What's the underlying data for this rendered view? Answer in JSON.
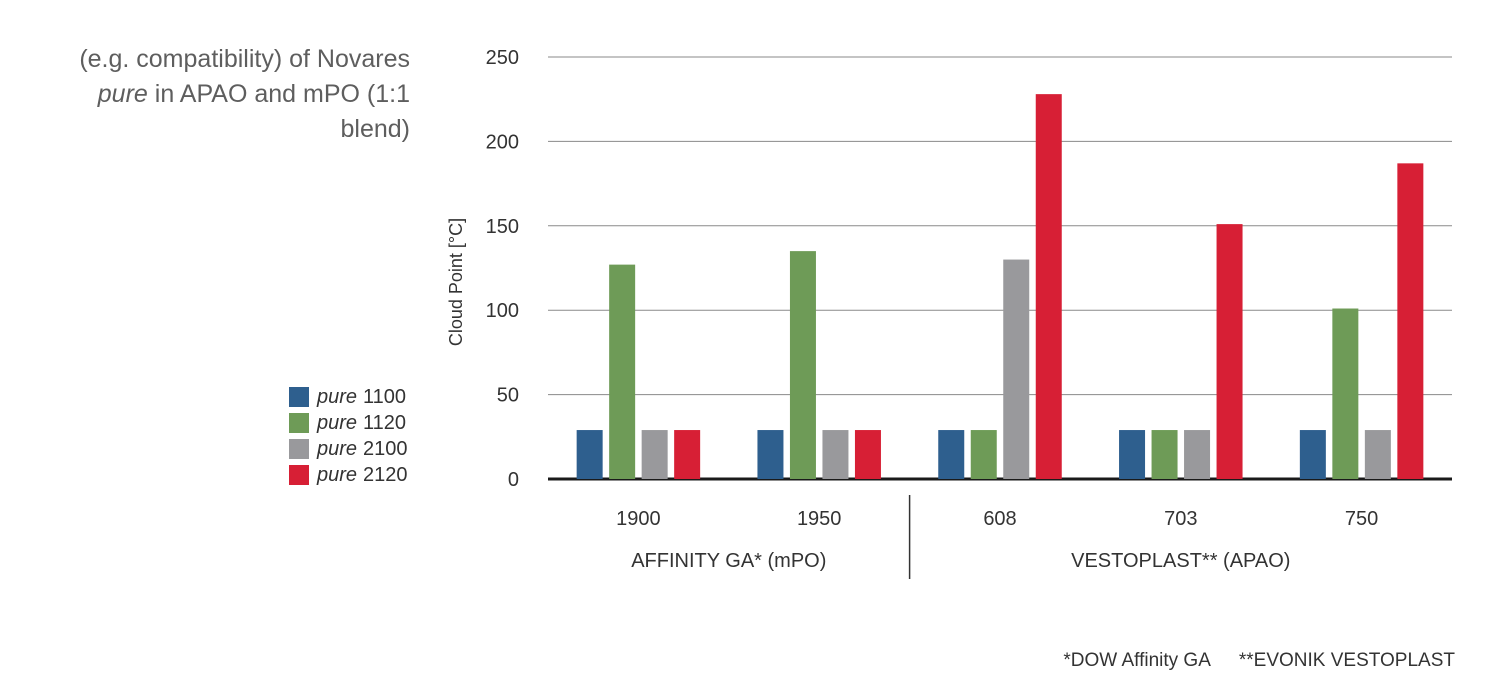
{
  "title": {
    "line1": "(e.g. compatibility) of Novares",
    "line2_italic": "pure",
    "line2_rest": " in APAO and mPO (1:1",
    "line3": "blend)"
  },
  "legend": [
    {
      "name": "pure",
      "code": "1100",
      "color": "#2e5f8e"
    },
    {
      "name": "pure",
      "code": "1120",
      "color": "#6e9b57"
    },
    {
      "name": "pure",
      "code": "2100",
      "color": "#99999c"
    },
    {
      "name": "pure",
      "code": "2120",
      "color": "#d71f35"
    }
  ],
  "footnotes": [
    "*DOW Affinity GA",
    "**EVONIK VESTOPLAST"
  ],
  "chart_data": {
    "type": "bar",
    "ylabel": "Cloud Point [°C]",
    "ylim": [
      0,
      250
    ],
    "yticks": [
      0,
      50,
      100,
      150,
      200,
      250
    ],
    "grid": true,
    "categories": [
      "1900",
      "1950",
      "608",
      "703",
      "750"
    ],
    "groups": [
      {
        "label": "AFFINITY GA* (mPO)",
        "categories": [
          "1900",
          "1950"
        ]
      },
      {
        "label": "VESTOPLAST** (APAO)",
        "categories": [
          "608",
          "703",
          "750"
        ]
      }
    ],
    "series": [
      {
        "name": "pure 1100",
        "color": "#2e5f8e",
        "values": [
          29,
          29,
          29,
          29,
          29
        ]
      },
      {
        "name": "pure 1120",
        "color": "#6e9b57",
        "values": [
          127,
          135,
          29,
          29,
          101
        ]
      },
      {
        "name": "pure 2100",
        "color": "#99999c",
        "values": [
          29,
          29,
          130,
          29,
          29
        ]
      },
      {
        "name": "pure 2120",
        "color": "#d71f35",
        "values": [
          29,
          29,
          228,
          151,
          187
        ]
      }
    ]
  }
}
